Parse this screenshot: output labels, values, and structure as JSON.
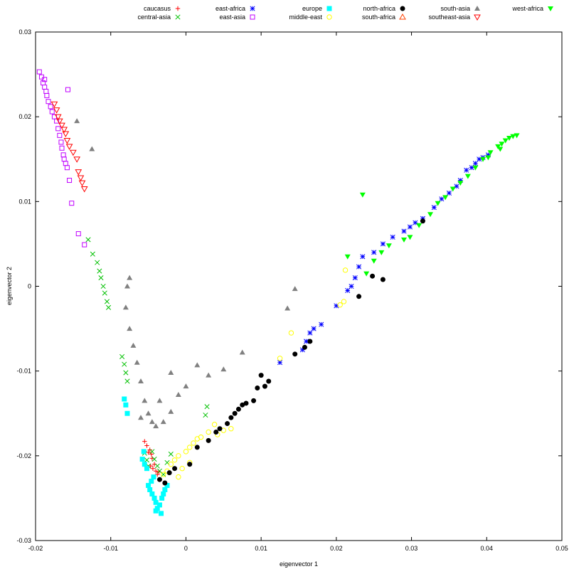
{
  "chart_data": {
    "type": "scatter",
    "title": "",
    "xlabel": "eigenvector 1",
    "ylabel": "eigenvector 2",
    "xlim": [
      -0.02,
      0.05
    ],
    "ylim": [
      -0.03,
      0.03
    ],
    "xticks": [
      -0.02,
      -0.01,
      0,
      0.01,
      0.02,
      0.03,
      0.04,
      0.05
    ],
    "xtick_labels": [
      "-0.02",
      "-0.01",
      "0",
      "0.01",
      "0.02",
      "0.03",
      "0.04",
      "0.05"
    ],
    "yticks": [
      -0.03,
      -0.02,
      -0.01,
      0,
      0.01,
      0.02,
      0.03
    ],
    "ytick_labels": [
      "-0.03",
      "-0.02",
      "-0.01",
      "0",
      "0.01",
      "0.02",
      "0.03"
    ],
    "grid": false,
    "legend_position": "top",
    "series": [
      {
        "name": "caucasus",
        "marker": "plus",
        "color": "#ff0000",
        "points": [
          [
            -0.0055,
            -0.0183
          ],
          [
            -0.0052,
            -0.0188
          ],
          [
            -0.0048,
            -0.0193
          ],
          [
            -0.0046,
            -0.0198
          ],
          [
            -0.0045,
            -0.0203
          ],
          [
            -0.0042,
            -0.021
          ],
          [
            -0.0044,
            -0.0215
          ],
          [
            -0.0047,
            -0.0212
          ],
          [
            -0.004,
            -0.0218
          ],
          [
            -0.0038,
            -0.0222
          ],
          [
            -0.0036,
            -0.0219
          ],
          [
            -0.005,
            -0.0196
          ]
        ]
      },
      {
        "name": "central-asia",
        "marker": "x",
        "color": "#00c000",
        "points": [
          [
            -0.013,
            0.0055
          ],
          [
            -0.0124,
            0.0038
          ],
          [
            -0.0118,
            0.0028
          ],
          [
            -0.0115,
            0.0018
          ],
          [
            -0.0113,
            0.001
          ],
          [
            -0.011,
            0.0
          ],
          [
            -0.0108,
            -0.0008
          ],
          [
            -0.0105,
            -0.0018
          ],
          [
            -0.0103,
            -0.0025
          ],
          [
            -0.0085,
            -0.0083
          ],
          [
            -0.0082,
            -0.0092
          ],
          [
            -0.008,
            -0.0102
          ],
          [
            -0.0078,
            -0.0112
          ],
          [
            -0.0055,
            -0.0197
          ],
          [
            -0.0052,
            -0.0205
          ],
          [
            -0.005,
            -0.0212
          ],
          [
            -0.0045,
            -0.0195
          ],
          [
            -0.0042,
            -0.0204
          ],
          [
            -0.0038,
            -0.0212
          ],
          [
            -0.0035,
            -0.0218
          ],
          [
            -0.003,
            -0.0222
          ],
          [
            0.0028,
            -0.0142
          ],
          [
            0.0026,
            -0.0152
          ],
          [
            -0.0025,
            -0.0208
          ],
          [
            -0.002,
            -0.0198
          ]
        ]
      },
      {
        "name": "east-africa",
        "marker": "star",
        "color": "#0000ff",
        "points": [
          [
            0.0125,
            -0.009
          ],
          [
            0.0155,
            -0.0075
          ],
          [
            0.016,
            -0.0065
          ],
          [
            0.0165,
            -0.0055
          ],
          [
            0.017,
            -0.005
          ],
          [
            0.018,
            -0.0045
          ],
          [
            0.02,
            -0.0023
          ],
          [
            0.0215,
            -0.0005
          ],
          [
            0.022,
            0.0
          ],
          [
            0.0225,
            0.001
          ],
          [
            0.023,
            0.0023
          ],
          [
            0.0235,
            0.0035
          ],
          [
            0.025,
            0.004
          ],
          [
            0.0262,
            0.005
          ],
          [
            0.0275,
            0.0058
          ],
          [
            0.029,
            0.0065
          ],
          [
            0.0298,
            0.007
          ],
          [
            0.0305,
            0.0075
          ],
          [
            0.0315,
            0.008
          ],
          [
            0.033,
            0.0093
          ],
          [
            0.034,
            0.0103
          ],
          [
            0.035,
            0.011
          ],
          [
            0.036,
            0.0118
          ],
          [
            0.0365,
            0.0125
          ],
          [
            0.0373,
            0.0137
          ],
          [
            0.038,
            0.014
          ],
          [
            0.0385,
            0.0145
          ],
          [
            0.039,
            0.015
          ],
          [
            0.0395,
            0.0152
          ],
          [
            0.0402,
            0.0155
          ]
        ]
      },
      {
        "name": "east-asia",
        "marker": "square-open",
        "color": "#c000ff",
        "points": [
          [
            -0.0195,
            0.0253
          ],
          [
            -0.0192,
            0.0247
          ],
          [
            -0.019,
            0.024
          ],
          [
            -0.0188,
            0.0235
          ],
          [
            -0.0186,
            0.023
          ],
          [
            -0.0185,
            0.0225
          ],
          [
            -0.0183,
            0.0218
          ],
          [
            -0.018,
            0.0212
          ],
          [
            -0.0178,
            0.0206
          ],
          [
            -0.0175,
            0.02
          ],
          [
            -0.0172,
            0.0195
          ],
          [
            -0.017,
            0.0186
          ],
          [
            -0.0168,
            0.0178
          ],
          [
            -0.0166,
            0.017
          ],
          [
            -0.0165,
            0.0163
          ],
          [
            -0.0163,
            0.0155
          ],
          [
            -0.0162,
            0.015
          ],
          [
            -0.016,
            0.0145
          ],
          [
            -0.0158,
            0.014
          ],
          [
            -0.0155,
            0.0125
          ],
          [
            -0.0152,
            0.0098
          ],
          [
            -0.0143,
            0.0062
          ],
          [
            -0.0135,
            0.0049
          ],
          [
            -0.0157,
            0.0232
          ],
          [
            -0.0188,
            0.0244
          ]
        ]
      },
      {
        "name": "europe",
        "marker": "square-filled",
        "color": "#00ffff",
        "points": [
          [
            -0.0082,
            -0.0133
          ],
          [
            -0.008,
            -0.014
          ],
          [
            -0.0078,
            -0.015
          ],
          [
            -0.0056,
            -0.0195
          ],
          [
            -0.0058,
            -0.0204
          ],
          [
            -0.0055,
            -0.021
          ],
          [
            -0.0052,
            -0.0215
          ],
          [
            -0.005,
            -0.0235
          ],
          [
            -0.0048,
            -0.024
          ],
          [
            -0.0045,
            -0.0245
          ],
          [
            -0.0042,
            -0.025
          ],
          [
            -0.004,
            -0.0255
          ],
          [
            -0.0038,
            -0.0262
          ],
          [
            -0.0035,
            -0.0258
          ],
          [
            -0.0032,
            -0.025
          ],
          [
            -0.003,
            -0.0245
          ],
          [
            -0.0028,
            -0.024
          ],
          [
            -0.0025,
            -0.0235
          ],
          [
            -0.0043,
            -0.0225
          ],
          [
            -0.0046,
            -0.023
          ],
          [
            -0.004,
            -0.0265
          ],
          [
            -0.0033,
            -0.0268
          ]
        ]
      },
      {
        "name": "middle-east",
        "marker": "circle-open",
        "color": "#ffff00",
        "points": [
          [
            -0.003,
            -0.0222
          ],
          [
            -0.0025,
            -0.0218
          ],
          [
            -0.002,
            -0.021
          ],
          [
            -0.0015,
            -0.0205
          ],
          [
            -0.001,
            -0.02
          ],
          [
            0.0,
            -0.0195
          ],
          [
            0.0005,
            -0.019
          ],
          [
            0.001,
            -0.0185
          ],
          [
            0.0015,
            -0.018
          ],
          [
            0.002,
            -0.0178
          ],
          [
            0.003,
            -0.0172
          ],
          [
            0.0038,
            -0.0163
          ],
          [
            0.0042,
            -0.0175
          ],
          [
            0.005,
            -0.017
          ],
          [
            0.006,
            -0.0168
          ],
          [
            0.0125,
            -0.0085
          ],
          [
            0.014,
            -0.0055
          ],
          [
            0.0205,
            -0.0022
          ],
          [
            0.021,
            -0.0018
          ],
          [
            0.0212,
            0.0019
          ],
          [
            -0.0005,
            -0.0215
          ],
          [
            -0.001,
            -0.0225
          ],
          [
            0.0005,
            -0.0208
          ]
        ]
      },
      {
        "name": "north-africa",
        "marker": "circle-filled",
        "color": "#000000",
        "points": [
          [
            -0.0035,
            -0.0228
          ],
          [
            -0.0028,
            -0.0232
          ],
          [
            -0.0022,
            -0.022
          ],
          [
            -0.0015,
            -0.0215
          ],
          [
            0.0005,
            -0.021
          ],
          [
            0.0015,
            -0.019
          ],
          [
            0.003,
            -0.0182
          ],
          [
            0.004,
            -0.0172
          ],
          [
            0.0045,
            -0.0168
          ],
          [
            0.0055,
            -0.0162
          ],
          [
            0.006,
            -0.0155
          ],
          [
            0.0065,
            -0.015
          ],
          [
            0.007,
            -0.0145
          ],
          [
            0.0075,
            -0.014
          ],
          [
            0.008,
            -0.0138
          ],
          [
            0.009,
            -0.0135
          ],
          [
            0.0095,
            -0.012
          ],
          [
            0.01,
            -0.0105
          ],
          [
            0.0105,
            -0.0118
          ],
          [
            0.011,
            -0.0112
          ],
          [
            0.0145,
            -0.008
          ],
          [
            0.0158,
            -0.0072
          ],
          [
            0.0165,
            -0.0065
          ],
          [
            0.023,
            -0.0012
          ],
          [
            0.0248,
            0.0012
          ],
          [
            0.0315,
            0.0077
          ],
          [
            0.0262,
            0.0008
          ]
        ]
      },
      {
        "name": "south-africa",
        "marker": "triangle-up-open",
        "color": "#ff4000",
        "points": []
      },
      {
        "name": "south-asia",
        "marker": "triangle-up-filled",
        "color": "#808080",
        "points": [
          [
            -0.0145,
            0.0195
          ],
          [
            -0.0125,
            0.0162
          ],
          [
            -0.0075,
            0.001
          ],
          [
            -0.0078,
            0.0
          ],
          [
            -0.008,
            -0.0025
          ],
          [
            -0.0075,
            -0.005
          ],
          [
            -0.007,
            -0.007
          ],
          [
            -0.0065,
            -0.009
          ],
          [
            -0.006,
            -0.0112
          ],
          [
            -0.0055,
            -0.0135
          ],
          [
            -0.005,
            -0.015
          ],
          [
            -0.0045,
            -0.016
          ],
          [
            -0.004,
            -0.0165
          ],
          [
            -0.003,
            -0.016
          ],
          [
            -0.002,
            -0.0148
          ],
          [
            -0.001,
            -0.0128
          ],
          [
            -0.002,
            -0.0102
          ],
          [
            0.0,
            -0.0118
          ],
          [
            0.0015,
            -0.0093
          ],
          [
            0.003,
            -0.0105
          ],
          [
            0.005,
            -0.0098
          ],
          [
            0.0075,
            -0.0078
          ],
          [
            0.0135,
            -0.0026
          ],
          [
            0.0145,
            -0.0003
          ],
          [
            -0.0035,
            -0.0135
          ],
          [
            -0.006,
            -0.0155
          ]
        ]
      },
      {
        "name": "southeast-asia",
        "marker": "triangle-down-open",
        "color": "#ff0000",
        "points": [
          [
            -0.0175,
            0.0215
          ],
          [
            -0.0172,
            0.0208
          ],
          [
            -0.017,
            0.02
          ],
          [
            -0.0168,
            0.0195
          ],
          [
            -0.0165,
            0.019
          ],
          [
            -0.0162,
            0.0185
          ],
          [
            -0.016,
            0.018
          ],
          [
            -0.0158,
            0.0172
          ],
          [
            -0.0155,
            0.0165
          ],
          [
            -0.015,
            0.0158
          ],
          [
            -0.0145,
            0.015
          ],
          [
            -0.0143,
            0.0135
          ],
          [
            -0.014,
            0.0128
          ],
          [
            -0.0138,
            0.0122
          ],
          [
            -0.0135,
            0.0115
          ]
        ]
      },
      {
        "name": "west-africa",
        "marker": "triangle-down-filled",
        "color": "#00ff00",
        "points": [
          [
            0.0235,
            0.0108
          ],
          [
            0.0215,
            0.0035
          ],
          [
            0.024,
            0.0015
          ],
          [
            0.025,
            0.003
          ],
          [
            0.026,
            0.004
          ],
          [
            0.027,
            0.0048
          ],
          [
            0.029,
            0.0055
          ],
          [
            0.0298,
            0.0058
          ],
          [
            0.031,
            0.0072
          ],
          [
            0.0325,
            0.0085
          ],
          [
            0.0335,
            0.0098
          ],
          [
            0.0345,
            0.0105
          ],
          [
            0.0355,
            0.0115
          ],
          [
            0.0365,
            0.0122
          ],
          [
            0.0375,
            0.013
          ],
          [
            0.0385,
            0.014
          ],
          [
            0.0395,
            0.015
          ],
          [
            0.0405,
            0.0158
          ],
          [
            0.0415,
            0.0165
          ],
          [
            0.042,
            0.0168
          ],
          [
            0.0425,
            0.0172
          ],
          [
            0.043,
            0.0175
          ],
          [
            0.0435,
            0.0177
          ],
          [
            0.044,
            0.0178
          ],
          [
            0.0418,
            0.0162
          ],
          [
            0.0402,
            0.0152
          ]
        ]
      }
    ]
  }
}
